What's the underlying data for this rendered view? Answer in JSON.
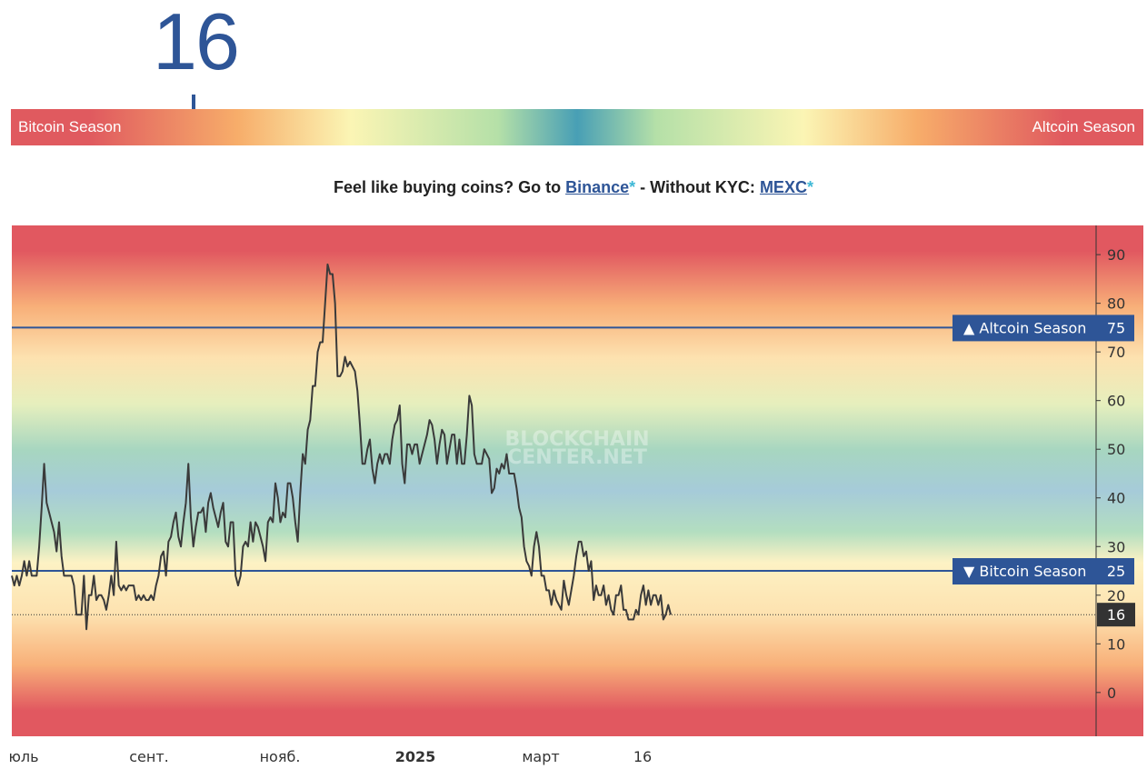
{
  "current_value": "16",
  "gauge": {
    "left_label": "Bitcoin Season",
    "right_label": "Altcoin Season",
    "value": 16
  },
  "promo": {
    "lead": "Feel like buying coins? Go to ",
    "link1": "Binance",
    "star1": "*",
    "middle": " - Without KYC: ",
    "link2": "MEXC",
    "star2": "*"
  },
  "watermark": {
    "line1": "BLOCKCHAIN",
    "line2": "CENTER.NET"
  },
  "chart_data": {
    "type": "line",
    "ylim": [
      -9,
      96
    ],
    "yticks": [
      90,
      80,
      70,
      60,
      50,
      40,
      30,
      20,
      10,
      0
    ],
    "x_labels": [
      "юль",
      "сент.",
      "нояб.",
      "2025",
      "март",
      "16"
    ],
    "reference_lines": [
      {
        "label": "▲ Altcoin Season",
        "value": 75
      },
      {
        "label": "▼ Bitcoin Season",
        "value": 25
      }
    ],
    "current_marker": {
      "label": "16",
      "value": 16
    },
    "series": [
      {
        "values": [
          24,
          22,
          24,
          22,
          24,
          27,
          24,
          27,
          24,
          24,
          24,
          30,
          38,
          47,
          39,
          37,
          35,
          33,
          29,
          35,
          28,
          24,
          24,
          24,
          24,
          22,
          16,
          16,
          16,
          24,
          13,
          20,
          20,
          24,
          19,
          20,
          20,
          19,
          17,
          20,
          24,
          20,
          31,
          22,
          21,
          22,
          21,
          22,
          22,
          22,
          19,
          20,
          19,
          20,
          19,
          19,
          20,
          19,
          22,
          24,
          28,
          29,
          24,
          31,
          32,
          35,
          37,
          32,
          30,
          35,
          39,
          47,
          36,
          30,
          34,
          37,
          37,
          38,
          33,
          39,
          41,
          38,
          36,
          34,
          37,
          39,
          31,
          30,
          35,
          35,
          24,
          22,
          24,
          30,
          31,
          30,
          35,
          31,
          35,
          34,
          32,
          30,
          27,
          35,
          36,
          35,
          43,
          40,
          35,
          37,
          36,
          43,
          43,
          40,
          35,
          31,
          41,
          49,
          47,
          54,
          56,
          63,
          63,
          70,
          72,
          72,
          80,
          88,
          86,
          86,
          80,
          65,
          65,
          66,
          69,
          67,
          68,
          67,
          66,
          62,
          55,
          47,
          47,
          50,
          52,
          46,
          43,
          47,
          49,
          47,
          49,
          49,
          47,
          52,
          55,
          56,
          59,
          47,
          43,
          51,
          51,
          49,
          51,
          51,
          47,
          49,
          51,
          53,
          56,
          55,
          52,
          47,
          51,
          54,
          53,
          47,
          50,
          53,
          53,
          47,
          52,
          47,
          47,
          53,
          61,
          59,
          49,
          47,
          47,
          47,
          50,
          49,
          48,
          41,
          42,
          46,
          45,
          47,
          46,
          49,
          45,
          45,
          45,
          42,
          38,
          36,
          30,
          27,
          26,
          24,
          30,
          33,
          30,
          24,
          24,
          21,
          21,
          18,
          21,
          19,
          18,
          17,
          23,
          20,
          18,
          21,
          24,
          28,
          31,
          31,
          28,
          29,
          25,
          27,
          19,
          22,
          20,
          20,
          22,
          18,
          20,
          17,
          16,
          20,
          20,
          22,
          17,
          17,
          15,
          15,
          15,
          17,
          16,
          20,
          22,
          18,
          21,
          18,
          20,
          20,
          18,
          20,
          15,
          16,
          18,
          16
        ]
      }
    ]
  }
}
